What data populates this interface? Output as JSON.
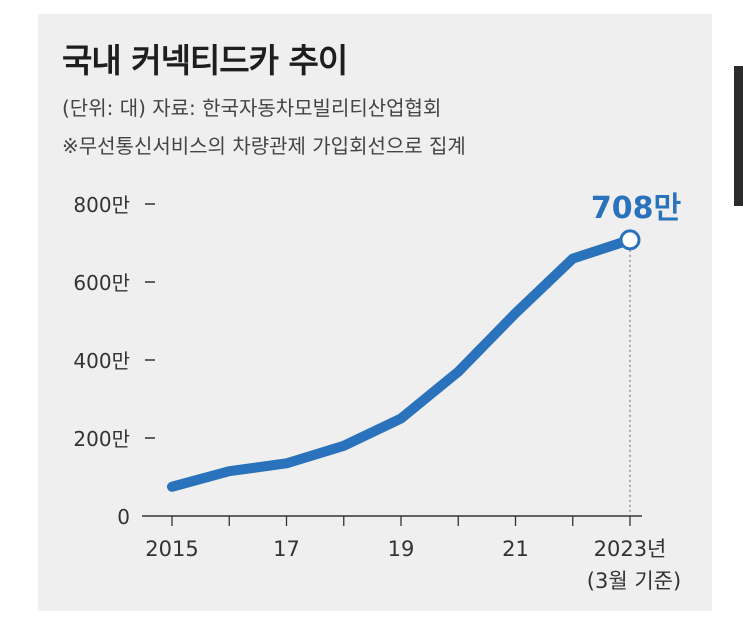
{
  "title": "국내 커넥티드카 추이",
  "subtitle": "(단위: 대) 자료: 한국자동차모빌리티산업협회",
  "note": "※무선통신서비스의 차량관제 가입회선으로 집계",
  "colors": {
    "line": "#2a72bb",
    "accent": "#2a72bb",
    "background": "#efefef",
    "axis": "#333333"
  },
  "chart_data": {
    "type": "line",
    "x": [
      2015,
      2016,
      2017,
      2018,
      2019,
      2020,
      2021,
      2022,
      2023
    ],
    "series": [
      {
        "values": [
          750000,
          1150000,
          1350000,
          1800000,
          2500000,
          3700000,
          5200000,
          6600000,
          7080000
        ]
      }
    ],
    "ylim": [
      0,
      8000000
    ],
    "yticks": [
      {
        "value": 0,
        "label": "0"
      },
      {
        "value": 2000000,
        "label": "200만"
      },
      {
        "value": 4000000,
        "label": "400만"
      },
      {
        "value": 6000000,
        "label": "600만"
      },
      {
        "value": 8000000,
        "label": "800만"
      }
    ],
    "xticks": [
      {
        "value": 2015,
        "label": "2015"
      },
      {
        "value": 2017,
        "label": "17"
      },
      {
        "value": 2019,
        "label": "19"
      },
      {
        "value": 2021,
        "label": "21"
      },
      {
        "value": 2023,
        "label": "2023년"
      }
    ],
    "x_note": "(3월 기준)",
    "annotation": {
      "x": 2023,
      "value": 7080000,
      "label": "708만"
    }
  }
}
